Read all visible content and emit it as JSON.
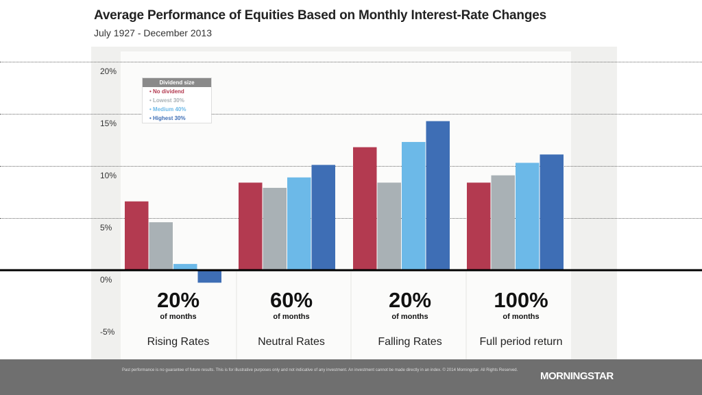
{
  "chart_data": {
    "type": "bar",
    "title": "Average Performance of Equities Based on Monthly Interest-Rate Changes",
    "subtitle": "July 1927 - December 2013",
    "categories": [
      "Rising Rates",
      "Neutral Rates",
      "Falling Rates",
      "Full period return"
    ],
    "category_shares": [
      {
        "percent": "20%",
        "note": "of months"
      },
      {
        "percent": "60%",
        "note": "of months"
      },
      {
        "percent": "20%",
        "note": "of months"
      },
      {
        "percent": "100%",
        "note": "of months"
      }
    ],
    "legend_title": "Dividend size",
    "legend_position": "top-left",
    "series": [
      {
        "name": "No dividend",
        "color": "#b33a50",
        "values": [
          6.6,
          8.4,
          11.8,
          8.4
        ]
      },
      {
        "name": "Lowest 30%",
        "color": "#a9b1b5",
        "values": [
          4.6,
          7.9,
          8.4,
          9.1
        ]
      },
      {
        "name": "Medium 40%",
        "color": "#6cb9e8",
        "values": [
          0.6,
          8.9,
          12.3,
          10.3
        ]
      },
      {
        "name": "Highest 30%",
        "color": "#3e6eb5",
        "values": [
          -1.2,
          10.1,
          14.3,
          11.1
        ]
      }
    ],
    "y_ticks": [
      "20%",
      "15%",
      "10%",
      "5%",
      "0%",
      "-5%"
    ],
    "ylim": [
      -5,
      20
    ],
    "grid": true
  },
  "footer": {
    "disclaimer": "Past performance is no guarantee of future results. This is for illustrative purposes only and not indicative of any investment. An investment cannot be made directly in an index. © 2014 Morningstar. All Rights Reserved.",
    "logo": "MORNINGSTAR"
  }
}
